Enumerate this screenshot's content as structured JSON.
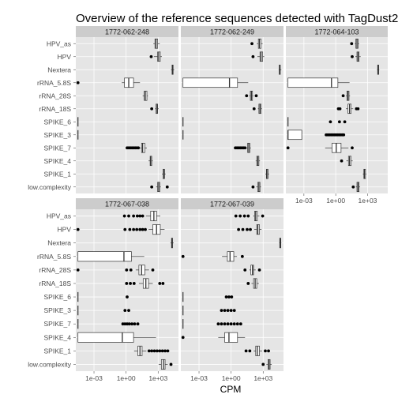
{
  "chart_data": {
    "type": "boxplot",
    "title": "Overview of the reference sequences detected with TagDust2",
    "xlabel": "CPM",
    "ylabel": "",
    "x_scale": "log10",
    "xlim_log10": [
      -4.7,
      4.9
    ],
    "x_ticks": [
      {
        "log10": -3,
        "label": "1e-03"
      },
      {
        "log10": 0,
        "label": "1e+00"
      },
      {
        "log10": 3,
        "label": "1e+03"
      }
    ],
    "categories": [
      "HPV_as",
      "HPV",
      "Nextera",
      "rRNA_5.8S",
      "rRNA_28S",
      "rRNA_18S",
      "SPIKE_6",
      "SPIKE_3",
      "SPIKE_7",
      "SPIKE_4",
      "SPIKE_1",
      "low.complexity"
    ],
    "colors": {
      "panel_bg": "#e5e5e5",
      "grid": "#ffffff",
      "strip_bg": "#cccccc",
      "text": "#4d4d4d",
      "points": "#000000",
      "box_fill": "#ffffff"
    },
    "panels": [
      {
        "name": "1772-062-248",
        "rows": [
          {
            "category": "HPV_as",
            "box": [
              2.55,
              2.7,
              2.8,
              2.95,
              3.15
            ],
            "outliers": []
          },
          {
            "category": "HPV",
            "box": [
              2.6,
              2.95,
              3.05,
              3.2,
              3.35
            ],
            "outliers": [
              2.35
            ]
          },
          {
            "category": "Nextera",
            "box": [
              4.2,
              4.3,
              4.35,
              4.4,
              4.5
            ],
            "outliers": []
          },
          {
            "category": "rRNA_5.8S",
            "box": [
              -0.4,
              -0.15,
              0.25,
              0.7,
              1.3
            ],
            "outliers": [
              -4.5
            ]
          },
          {
            "category": "rRNA_28S",
            "box": [
              1.55,
              1.7,
              1.8,
              1.95,
              2.05
            ],
            "outliers": []
          },
          {
            "category": "rRNA_18S",
            "box": [
              2.7,
              2.8,
              2.9,
              2.95,
              3.05
            ],
            "outliers": [
              2.4
            ]
          },
          {
            "category": "SPIKE_6",
            "box": [
              -4.5,
              -4.5,
              -4.5,
              -4.5,
              -4.5
            ],
            "outliers": []
          },
          {
            "category": "SPIKE_3",
            "box": [
              -4.5,
              -4.5,
              -4.5,
              -4.5,
              -4.5
            ],
            "outliers": []
          },
          {
            "category": "SPIKE_7",
            "box": [
              1.3,
              1.45,
              1.55,
              1.75,
              1.95
            ],
            "outliers": [
              0.1,
              0.25,
              0.4,
              0.55,
              0.7,
              0.85,
              1.0,
              1.15
            ]
          },
          {
            "category": "SPIKE_4",
            "box": [
              2.1,
              2.25,
              2.3,
              2.4,
              2.5
            ],
            "outliers": []
          },
          {
            "category": "SPIKE_1",
            "box": [
              3.35,
              3.45,
              3.55,
              3.6,
              3.7
            ],
            "outliers": []
          },
          {
            "category": "low.complexity",
            "box": [
              2.8,
              2.95,
              3.05,
              3.15,
              3.25
            ],
            "outliers": [
              2.4,
              3.85
            ]
          }
        ]
      },
      {
        "name": "1772-062-249",
        "rows": [
          {
            "category": "HPV_as",
            "box": [
              2.4,
              2.55,
              2.65,
              2.8,
              2.95
            ],
            "outliers": [
              1.95
            ]
          },
          {
            "category": "HPV",
            "box": [
              2.45,
              2.7,
              2.8,
              2.95,
              3.1
            ],
            "outliers": [
              2.05
            ]
          },
          {
            "category": "Nextera",
            "box": [
              4.45,
              4.5,
              4.55,
              4.6,
              4.7
            ],
            "outliers": []
          },
          {
            "category": "rRNA_5.8S",
            "box": [
              -4.5,
              -4.5,
              -0.15,
              0.6,
              1.6
            ],
            "outliers": []
          },
          {
            "category": "rRNA_28S",
            "box": [
              1.7,
              1.8,
              1.9,
              2.0,
              2.1
            ],
            "outliers": [
              1.45,
              2.35
            ]
          },
          {
            "category": "rRNA_18S",
            "box": [
              2.5,
              2.6,
              2.7,
              2.8,
              2.9
            ],
            "outliers": [
              2.15
            ]
          },
          {
            "category": "SPIKE_6",
            "box": [
              -4.5,
              -4.5,
              -4.5,
              -4.5,
              -4.5
            ],
            "outliers": []
          },
          {
            "category": "SPIKE_3",
            "box": [
              -4.5,
              -4.5,
              -4.5,
              -4.5,
              -4.5
            ],
            "outliers": []
          },
          {
            "category": "SPIKE_7",
            "box": [
              1.45,
              1.55,
              1.65,
              1.75,
              1.85
            ],
            "outliers": [
              0.4,
              0.55,
              0.7,
              0.85,
              1.0,
              1.15,
              1.3
            ]
          },
          {
            "category": "SPIKE_4",
            "box": [
              2.3,
              2.4,
              2.5,
              2.6,
              2.7
            ],
            "outliers": []
          },
          {
            "category": "SPIKE_1",
            "box": [
              3.2,
              3.3,
              3.35,
              3.45,
              3.55
            ],
            "outliers": []
          },
          {
            "category": "low.complexity",
            "box": [
              2.35,
              2.5,
              2.6,
              2.7,
              2.8
            ],
            "outliers": [
              2.05
            ]
          }
        ]
      },
      {
        "name": "1772-064-103",
        "rows": [
          {
            "category": "HPV_as",
            "box": [
              1.8,
              1.9,
              2.0,
              2.1,
              2.2
            ],
            "outliers": [
              1.5
            ]
          },
          {
            "category": "HPV",
            "box": [
              1.85,
              2.0,
              2.1,
              2.2,
              2.35
            ],
            "outliers": [
              1.55
            ]
          },
          {
            "category": "Nextera",
            "box": [
              3.9,
              3.95,
              4.0,
              4.05,
              4.1
            ],
            "outliers": []
          },
          {
            "category": "rRNA_5.8S",
            "box": [
              -4.5,
              -4.5,
              -0.4,
              0.2,
              1.3
            ],
            "outliers": []
          },
          {
            "category": "rRNA_28S",
            "box": [
              0.95,
              1.05,
              1.15,
              1.25,
              1.35
            ],
            "outliers": [
              0.7
            ]
          },
          {
            "category": "rRNA_18S",
            "box": [
              0.95,
              1.15,
              1.3,
              1.45,
              1.65
            ],
            "outliers": [
              0.25,
              0.4,
              1.95,
              2.1
            ]
          },
          {
            "category": "SPIKE_6",
            "box": [
              -4.5,
              -4.5,
              -4.5,
              -4.5,
              -4.5
            ],
            "outliers": [
              -0.5,
              0.35,
              0.85
            ]
          },
          {
            "category": "SPIKE_3",
            "box": [
              -4.5,
              -4.5,
              -4.5,
              -3.2,
              -3.2
            ],
            "outliers": [
              -0.9,
              -0.75,
              -0.6,
              -0.45,
              -0.3,
              -0.15,
              0.0,
              0.15,
              0.3,
              0.45,
              0.6,
              0.75
            ]
          },
          {
            "category": "SPIKE_7",
            "box": [
              -1.0,
              -0.35,
              0.05,
              0.5,
              1.2
            ],
            "outliers": [
              -4.5,
              1.55
            ]
          },
          {
            "category": "SPIKE_4",
            "box": [
              1.0,
              1.2,
              1.3,
              1.45,
              1.6
            ],
            "outliers": [
              0.55
            ]
          },
          {
            "category": "SPIKE_1",
            "box": [
              2.55,
              2.65,
              2.7,
              2.8,
              2.9
            ],
            "outliers": []
          },
          {
            "category": "low.complexity",
            "box": [
              1.9,
              2.0,
              2.1,
              2.2,
              2.3
            ],
            "outliers": [
              1.65
            ]
          }
        ]
      },
      {
        "name": "1772-067-038",
        "rows": [
          {
            "category": "HPV_as",
            "box": [
              1.85,
              2.3,
              2.6,
              2.85,
              3.2
            ],
            "outliers": [
              -0.15,
              0.25,
              0.7,
              1.05,
              1.3,
              1.55
            ]
          },
          {
            "category": "HPV",
            "box": [
              2.1,
              2.5,
              2.85,
              3.2,
              3.6
            ],
            "outliers": [
              -4.5,
              -0.1,
              0.35,
              0.7,
              1.0,
              1.3,
              1.55,
              1.8
            ]
          },
          {
            "category": "Nextera",
            "box": [
              4.15,
              4.25,
              4.3,
              4.35,
              4.45
            ],
            "outliers": []
          },
          {
            "category": "rRNA_5.8S",
            "box": [
              -4.5,
              -4.5,
              -0.2,
              0.5,
              1.7
            ],
            "outliers": []
          },
          {
            "category": "rRNA_28S",
            "box": [
              0.9,
              1.2,
              1.45,
              1.75,
              2.15
            ],
            "outliers": [
              -4.5,
              0.05,
              0.45,
              2.5
            ]
          },
          {
            "category": "rRNA_18S",
            "box": [
              1.2,
              1.6,
              1.85,
              2.1,
              2.5
            ],
            "outliers": [
              0.05,
              0.4,
              0.75,
              3.15,
              3.45
            ]
          },
          {
            "category": "SPIKE_6",
            "box": [
              -4.5,
              -4.5,
              -4.5,
              -4.5,
              -4.5
            ],
            "outliers": [
              0.1
            ]
          },
          {
            "category": "SPIKE_3",
            "box": [
              -4.5,
              -4.5,
              -4.5,
              -4.5,
              -4.5
            ],
            "outliers": [
              -0.1,
              0.25
            ]
          },
          {
            "category": "SPIKE_7",
            "box": [
              -4.5,
              -4.5,
              -4.5,
              -4.5,
              -4.5
            ],
            "outliers": [
              -0.3,
              -0.1,
              0.1,
              0.3,
              0.55,
              0.8,
              1.1
            ]
          },
          {
            "category": "SPIKE_4",
            "box": [
              -4.5,
              -4.5,
              -0.35,
              0.7,
              2.8
            ],
            "outliers": []
          },
          {
            "category": "SPIKE_1",
            "box": [
              0.75,
              1.1,
              1.3,
              1.5,
              1.9
            ],
            "outliers": [
              2.15,
              2.4,
              2.65,
              2.9,
              3.15,
              3.4,
              3.65,
              3.9
            ]
          },
          {
            "category": "low.complexity",
            "box": [
              3.05,
              3.3,
              3.5,
              3.65,
              3.9
            ],
            "outliers": [
              4.2
            ]
          }
        ]
      },
      {
        "name": "1772-067-039",
        "rows": [
          {
            "category": "HPV_as",
            "box": [
              2.05,
              2.2,
              2.3,
              2.45,
              2.65
            ],
            "outliers": [
              0.45,
              0.85,
              1.25,
              1.6,
              2.95
            ]
          },
          {
            "category": "HPV",
            "box": [
              2.15,
              2.4,
              2.5,
              2.65,
              2.85
            ],
            "outliers": [
              0.7,
              1.1,
              1.5,
              1.8
            ]
          },
          {
            "category": "Nextera",
            "box": [
              4.5,
              4.55,
              4.6,
              4.65,
              4.7
            ],
            "outliers": []
          },
          {
            "category": "rRNA_5.8S",
            "box": [
              -0.85,
              -0.35,
              -0.1,
              0.25,
              0.55
            ],
            "outliers": [
              -4.5,
              1.05
            ]
          },
          {
            "category": "rRNA_28S",
            "box": [
              1.7,
              1.85,
              2.0,
              2.1,
              2.3
            ],
            "outliers": [
              1.3,
              2.65
            ]
          },
          {
            "category": "rRNA_18S",
            "box": [
              1.9,
              2.1,
              2.25,
              2.4,
              2.6
            ],
            "outliers": [
              1.6
            ]
          },
          {
            "category": "SPIKE_6",
            "box": [
              -4.5,
              -4.5,
              -4.5,
              -4.5,
              -4.5
            ],
            "outliers": [
              -0.45,
              -0.2,
              0.05
            ]
          },
          {
            "category": "SPIKE_3",
            "box": [
              -4.5,
              -4.5,
              -4.5,
              -4.5,
              -4.5
            ],
            "outliers": [
              -0.9,
              -0.6,
              -0.3,
              0.0,
              0.3
            ]
          },
          {
            "category": "SPIKE_7",
            "box": [
              -4.5,
              -4.5,
              -4.5,
              -4.5,
              -4.5
            ],
            "outliers": [
              -1.2,
              -0.9,
              -0.6,
              -0.3,
              0.0,
              0.3,
              0.6,
              0.9
            ]
          },
          {
            "category": "SPIKE_4",
            "box": [
              -1.2,
              -0.6,
              -0.2,
              0.6,
              1.3
            ],
            "outliers": [
              -4.5
            ]
          },
          {
            "category": "SPIKE_1",
            "box": [
              2.1,
              2.3,
              2.45,
              2.65,
              2.9
            ],
            "outliers": [
              1.4,
              1.75,
              3.2,
              3.5
            ]
          },
          {
            "category": "low.complexity",
            "box": [
              3.3,
              3.45,
              3.55,
              3.65,
              3.8
            ],
            "outliers": [
              3.0
            ]
          }
        ]
      }
    ]
  }
}
